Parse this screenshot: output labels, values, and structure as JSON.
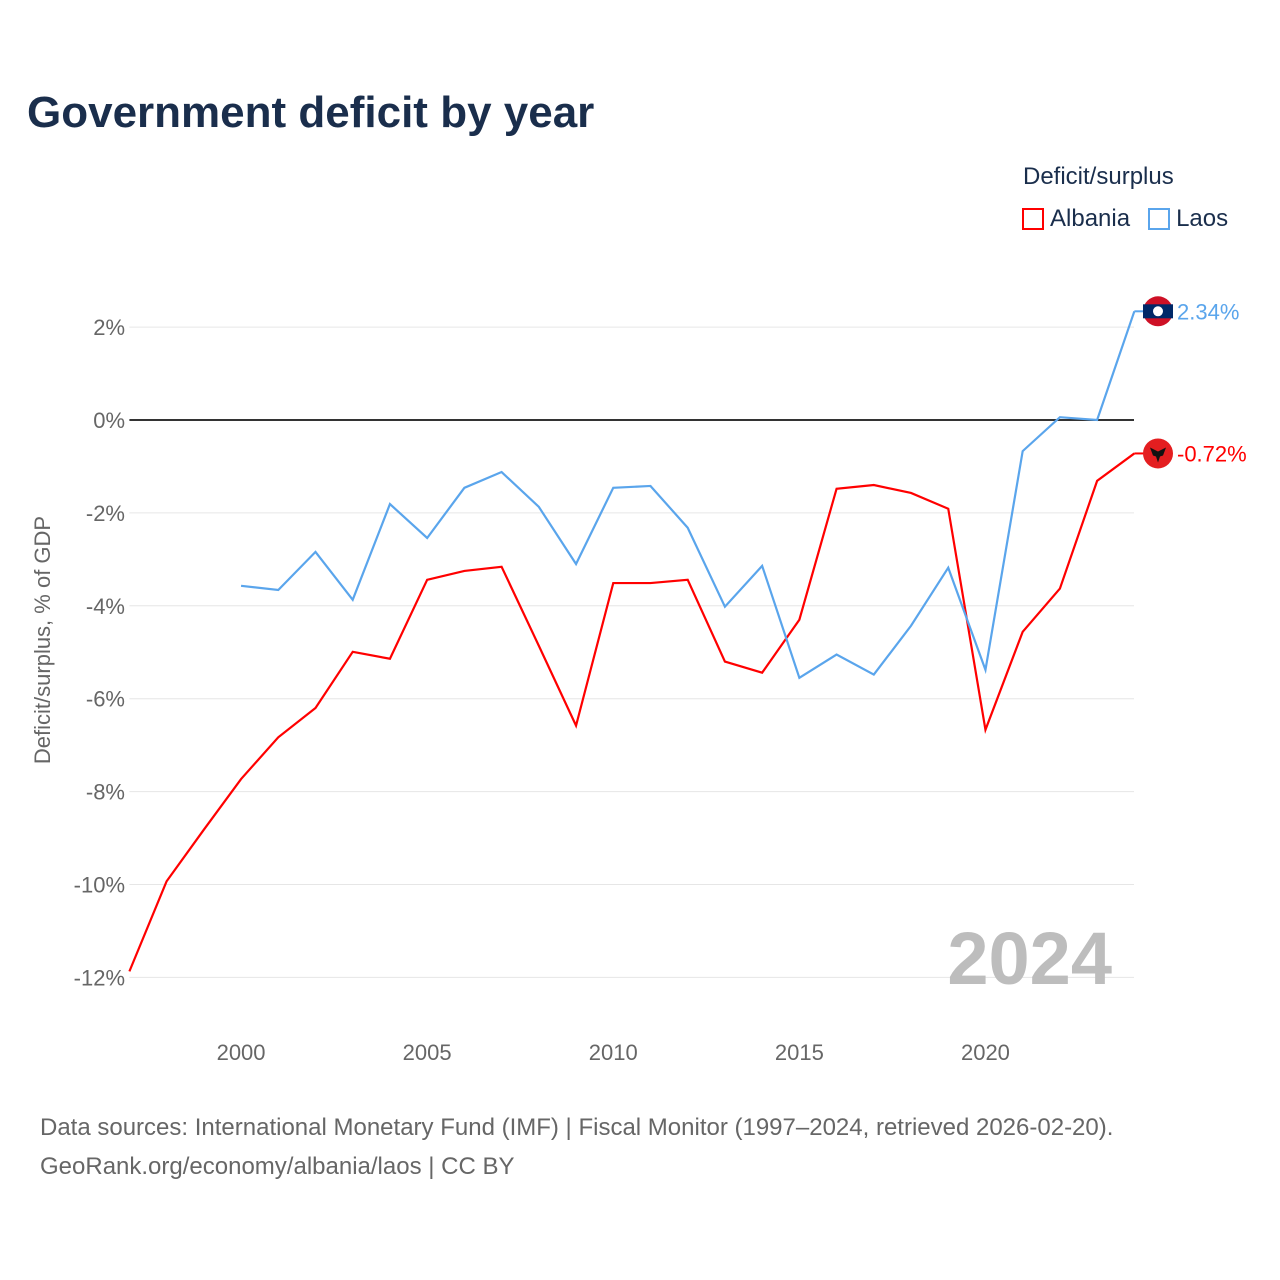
{
  "title": "Government deficit by year",
  "legend": {
    "title": "Deficit/surplus",
    "items": [
      {
        "label": "Albania",
        "color": "#ff0000"
      },
      {
        "label": "Laos",
        "color": "#5aa5ec"
      }
    ]
  },
  "year_label": "2024",
  "source": {
    "line1": "Data sources: International Monetary Fund (IMF) | Fiscal Monitor (1997–2024, retrieved 2026-02-20).",
    "line2": "GeoRank.org/economy/albania/laos | CC BY"
  },
  "chart_data": {
    "type": "line",
    "title": "Government deficit by year",
    "xlabel": "",
    "ylabel": "Deficit/surplus, % of GDP",
    "xlim": [
      1997,
      2024
    ],
    "ylim": [
      -12.5,
      3
    ],
    "xticks": [
      2000,
      2005,
      2010,
      2015,
      2020
    ],
    "yticks": [
      2,
      0,
      -2,
      -4,
      -6,
      -8,
      -10,
      -12
    ],
    "ytick_labels": [
      "2%",
      "0%",
      "-2%",
      "-4%",
      "-6%",
      "-8%",
      "-10%",
      "-12%"
    ],
    "grid": true,
    "legend_position": "top-right",
    "series": [
      {
        "name": "Albania",
        "color": "#ff0000",
        "end_label": "-0.72%",
        "x": [
          1997,
          1998,
          1999,
          2000,
          2001,
          2002,
          2003,
          2004,
          2005,
          2006,
          2007,
          2008,
          2009,
          2010,
          2011,
          2012,
          2013,
          2014,
          2015,
          2016,
          2017,
          2018,
          2019,
          2020,
          2021,
          2022,
          2023,
          2024
        ],
        "values": [
          -11.87,
          -9.93,
          -8.82,
          -7.73,
          -6.83,
          -6.2,
          -4.99,
          -5.14,
          -3.44,
          -3.25,
          -3.16,
          -4.86,
          -6.58,
          -3.51,
          -3.51,
          -3.44,
          -5.2,
          -5.44,
          -4.3,
          -1.48,
          -1.4,
          -1.57,
          -1.91,
          -6.67,
          -4.56,
          -3.63,
          -1.31,
          -0.72
        ]
      },
      {
        "name": "Laos",
        "color": "#5aa5ec",
        "end_label": "2.34%",
        "x": [
          2000,
          2001,
          2002,
          2003,
          2004,
          2005,
          2006,
          2007,
          2008,
          2009,
          2010,
          2011,
          2012,
          2013,
          2014,
          2015,
          2016,
          2017,
          2018,
          2019,
          2020,
          2021,
          2022,
          2023,
          2024
        ],
        "values": [
          -3.57,
          -3.66,
          -2.84,
          -3.87,
          -1.81,
          -2.54,
          -1.46,
          -1.12,
          -1.87,
          -3.1,
          -1.46,
          -1.42,
          -2.32,
          -4.02,
          -3.14,
          -5.55,
          -5.05,
          -5.48,
          -4.43,
          -3.18,
          -5.38,
          -0.67,
          0.06,
          0.0,
          2.34
        ]
      }
    ]
  }
}
